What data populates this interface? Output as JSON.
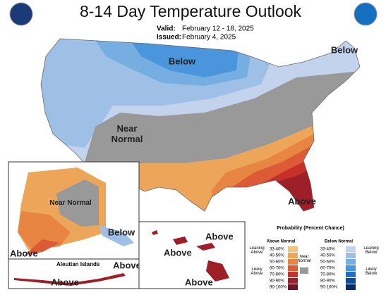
{
  "header": {
    "title": "8-14 Day Temperature Outlook",
    "valid_label": "Valid:",
    "valid_date": "February 12 - 18, 2025",
    "issued_label": "Issued:",
    "issued_date": "February 4, 2025"
  },
  "conus_labels": {
    "below_north": "Below",
    "below_northeast": "Below",
    "near_normal": "Near Normal",
    "above_southeast": "Above"
  },
  "alaska_labels": {
    "near_normal": "Near Normal",
    "above": "Above",
    "below": "Below"
  },
  "aleutian": {
    "title": "Aleutian Islands",
    "above_1": "Above",
    "above_2": "Above"
  },
  "hawaii_labels": {
    "above_1": "Above",
    "above_2": "Above",
    "above_3": "Above"
  },
  "legend": {
    "title": "Probability (Percent Chance)",
    "above_title": "Above Normal",
    "below_title": "Below Normal",
    "near_title": "Near Normal",
    "near_color": "#999999",
    "leaning_above": "Leaning Above",
    "likely_above": "Likely Above",
    "leaning_below": "Leaning Below",
    "likely_below": "Likely Below",
    "above": [
      {
        "range": "33-40%",
        "color": "#f3c27f"
      },
      {
        "range": "40-50%",
        "color": "#eda55a"
      },
      {
        "range": "50-60%",
        "color": "#e88543"
      },
      {
        "range": "60-70%",
        "color": "#dc5a35"
      },
      {
        "range": "70-80%",
        "color": "#c7302a"
      },
      {
        "range": "80-90%",
        "color": "#9e1f28"
      },
      {
        "range": "90-100%",
        "color": "#6e1420"
      }
    ],
    "below": [
      {
        "range": "33-40%",
        "color": "#c3d3ee"
      },
      {
        "range": "40-50%",
        "color": "#9fc0e6"
      },
      {
        "range": "50-60%",
        "color": "#76aee2"
      },
      {
        "range": "60-70%",
        "color": "#4a95db"
      },
      {
        "range": "70-80%",
        "color": "#1f70c2"
      },
      {
        "range": "80-90%",
        "color": "#0e4b9a"
      },
      {
        "range": "90-100%",
        "color": "#0a2b6a"
      }
    ]
  }
}
